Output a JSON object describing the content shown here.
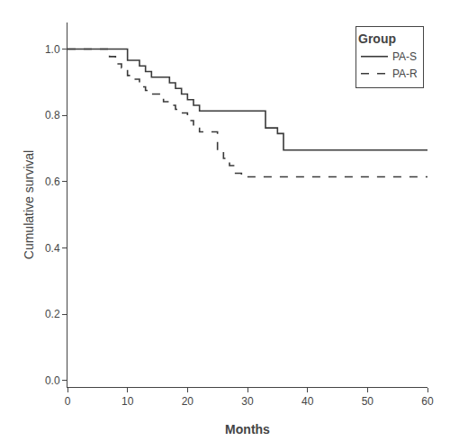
{
  "chart_data": {
    "type": "step",
    "xlabel": "Months",
    "ylabel": "Cumulative survival",
    "xlim": [
      0,
      60
    ],
    "ylim": [
      -0.02,
      1.08
    ],
    "xticks": [
      0,
      10,
      20,
      30,
      40,
      50,
      60
    ],
    "yticks": [
      {
        "value": 0.0,
        "label": "0.0"
      },
      0.2,
      0.4,
      0.6,
      0.8,
      {
        "value": 1.0,
        "label": "1.0"
      }
    ],
    "grid": false,
    "legend": "upper right",
    "legend_title": "Group",
    "series": [
      {
        "name": "PA-S",
        "color": "#3a3a3a",
        "line_style": "solid",
        "x": [
          0,
          8,
          10,
          12,
          13,
          14,
          17,
          18,
          19,
          20,
          21,
          22,
          32,
          33,
          35,
          36,
          60
        ],
        "values": [
          1.0,
          1.0,
          0.966,
          0.949,
          0.932,
          0.915,
          0.898,
          0.881,
          0.864,
          0.847,
          0.83,
          0.813,
          0.813,
          0.762,
          0.745,
          0.695,
          0.695
        ]
      },
      {
        "name": "PA-R",
        "color": "#3a3a3a",
        "line_style": "dashed",
        "x": [
          0,
          6,
          7,
          8,
          9,
          10,
          11,
          12,
          13,
          14,
          16,
          17,
          18,
          19,
          20,
          21,
          22,
          25,
          26,
          27,
          28,
          29,
          30,
          60
        ],
        "values": [
          1.0,
          1.0,
          0.977,
          0.955,
          0.943,
          0.92,
          0.909,
          0.886,
          0.875,
          0.864,
          0.841,
          0.83,
          0.818,
          0.807,
          0.784,
          0.761,
          0.75,
          0.693,
          0.67,
          0.648,
          0.625,
          0.614,
          0.614,
          0.614
        ]
      }
    ]
  }
}
